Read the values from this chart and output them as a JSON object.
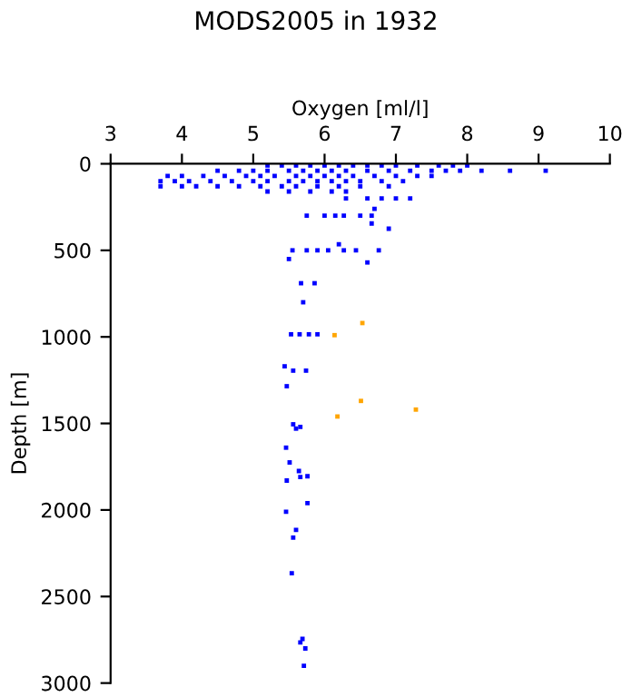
{
  "chart_data": {
    "type": "scatter",
    "title": "MODS2005 in 1932",
    "xlabel": "Oxygen [ml/l]",
    "ylabel": "Depth [m]",
    "xlim": [
      3,
      10
    ],
    "xticks": [
      3,
      4,
      5,
      6,
      7,
      8,
      9,
      10
    ],
    "ylim": [
      3000,
      0
    ],
    "yticks": [
      0,
      500,
      1000,
      1500,
      2000,
      2500,
      3000
    ],
    "grid": false,
    "legend": false,
    "marker": "square",
    "series": [
      {
        "color": "#0000ff",
        "x": [
          5.2,
          5.4,
          5.6,
          5.8,
          6.0,
          6.2,
          6.4,
          6.6,
          6.8,
          7.0,
          7.3,
          7.6,
          7.8,
          8.0,
          4.5,
          4.8,
          5.0,
          5.2,
          5.5,
          5.7,
          5.9,
          6.1,
          6.3,
          6.6,
          6.9,
          7.2,
          7.5,
          7.7,
          7.9,
          8.2,
          8.6,
          9.1,
          3.8,
          4.0,
          4.3,
          4.6,
          4.9,
          5.1,
          5.3,
          5.6,
          5.8,
          6.0,
          6.2,
          6.4,
          6.7,
          7.0,
          7.3,
          7.5,
          3.7,
          3.9,
          4.1,
          4.4,
          4.7,
          5.0,
          5.2,
          5.5,
          5.7,
          5.9,
          6.1,
          6.3,
          6.5,
          6.8,
          7.1,
          3.7,
          4.0,
          4.2,
          4.5,
          4.8,
          5.1,
          5.4,
          5.6,
          5.9,
          6.2,
          6.5,
          6.9,
          5.2,
          5.5,
          5.8,
          6.1,
          6.3,
          6.3,
          6.6,
          6.8,
          7.0,
          7.2,
          6.7,
          5.75,
          6.0,
          6.15,
          6.27,
          6.5,
          6.66,
          6.66,
          6.9,
          6.2,
          5.55,
          5.75,
          5.9,
          6.05,
          6.27,
          6.44,
          6.76,
          5.5,
          6.6,
          5.67,
          5.86,
          5.7,
          5.53,
          5.65,
          5.78,
          5.9,
          5.44,
          5.56,
          5.74,
          5.47,
          5.56,
          5.66,
          5.6,
          5.46,
          5.51,
          5.64,
          5.66,
          5.76,
          5.47,
          5.76,
          5.46,
          5.6,
          5.56,
          5.54,
          5.69,
          5.66,
          5.73,
          5.71
        ],
        "values": [
          10,
          10,
          10,
          10,
          10,
          10,
          10,
          10,
          10,
          10,
          10,
          10,
          10,
          10,
          40,
          40,
          40,
          40,
          40,
          40,
          40,
          40,
          40,
          40,
          40,
          40,
          40,
          40,
          40,
          40,
          40,
          40,
          70,
          70,
          70,
          70,
          70,
          70,
          70,
          70,
          70,
          70,
          70,
          70,
          70,
          70,
          70,
          70,
          100,
          100,
          100,
          100,
          100,
          100,
          100,
          100,
          100,
          100,
          100,
          100,
          100,
          100,
          100,
          130,
          130,
          130,
          130,
          130,
          130,
          130,
          130,
          130,
          130,
          130,
          130,
          160,
          160,
          160,
          160,
          160,
          200,
          200,
          200,
          200,
          200,
          260,
          300,
          300,
          300,
          300,
          300,
          300,
          345,
          375,
          465,
          500,
          500,
          500,
          500,
          500,
          500,
          500,
          550,
          570,
          690,
          690,
          800,
          985,
          985,
          985,
          985,
          1170,
          1195,
          1195,
          1285,
          1505,
          1520,
          1530,
          1640,
          1725,
          1775,
          1810,
          1805,
          1830,
          1960,
          2010,
          2115,
          2160,
          2365,
          2745,
          2765,
          2800,
          2900
        ]
      },
      {
        "color": "#ffa500",
        "x": [
          6.53,
          6.14,
          6.51,
          7.28,
          6.18
        ],
        "values": [
          920,
          990,
          1370,
          1420,
          1460
        ]
      }
    ]
  }
}
